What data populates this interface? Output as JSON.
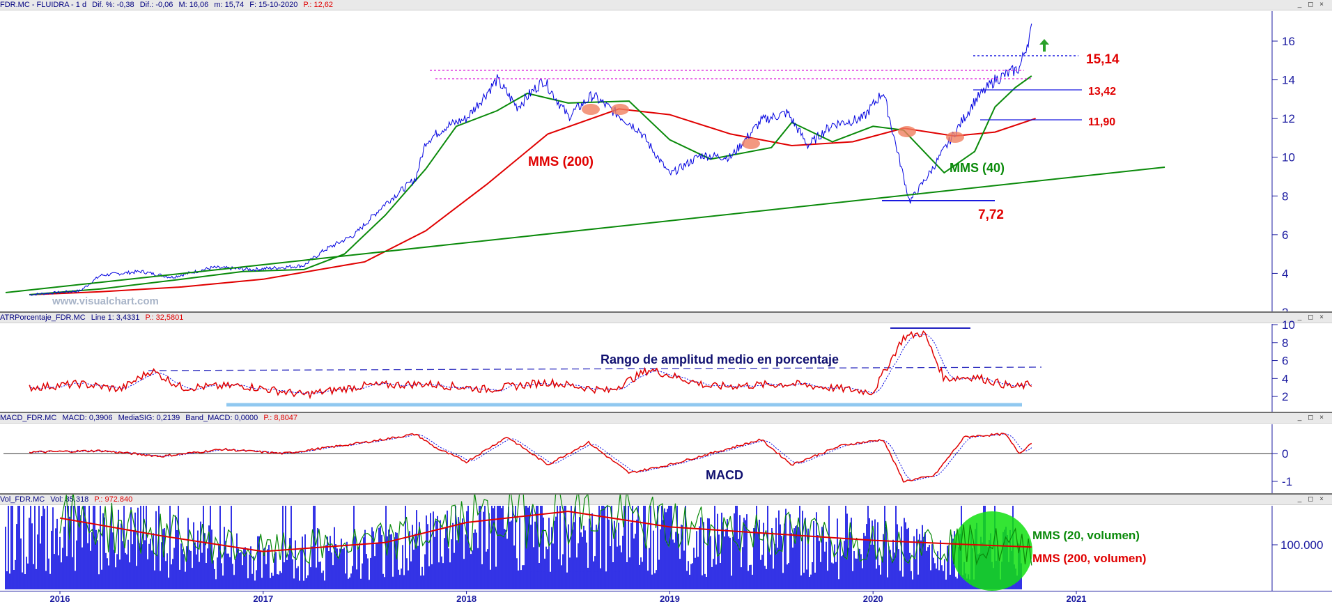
{
  "panels": {
    "price": {
      "header": {
        "symbol": "FDR.MC - FLUIDRA - 1 d",
        "dif_pct": "Dif. %: -0,38",
        "dif": "Dif.: -0,06",
        "max": "M: 16,06",
        "min": "m: 15,74",
        "date": "F: 15-10-2020",
        "price": "P.: 12,62"
      },
      "annotations": {
        "mms200": "MMS (200)",
        "mms40": "MMS (40)",
        "level_1514": "15,14",
        "level_1342": "13,42",
        "level_1190": "11,90",
        "level_772": "7,72"
      },
      "watermark": "www.visualchart.com"
    },
    "atr": {
      "header": {
        "name": "ATRPorcentaje_FDR.MC",
        "line": "Line 1: 3,4331",
        "price": "P.: 32,5801"
      },
      "annotation": "Rango de amplitud medio en porcentaje"
    },
    "macd": {
      "header": {
        "name": "MACD_FDR.MC",
        "macd": "MACD: 0,3906",
        "signal": "MediaSIG: 0,2139",
        "band": "Band_MACD: 0,0000",
        "price": "P.: 8,8047"
      },
      "annotation": "MACD"
    },
    "volume": {
      "header": {
        "name": "Vol_FDR.MC",
        "vol": "Vol: 35.318",
        "price": "P.: 972.840"
      },
      "annotation_mms20": "MMS (20, volumen)",
      "annotation_mms200": "MMS (200, volumen)"
    }
  },
  "window_controls": "_ ◻ ×",
  "colors": {
    "price_line": "#0000e0",
    "mms40": "#0a8a0a",
    "mms200": "#e00000",
    "trendline": "#0a8a0a",
    "atr_line": "#e00000",
    "atr_signal": "#0000e0",
    "macd_line": "#e00000",
    "macd_signal": "#0000e0",
    "volume_bars": "#0000e0",
    "highlight_circle": "#00e000"
  },
  "chart_data": [
    {
      "type": "line",
      "panel": "price",
      "x_ticks": [
        "2016",
        "2017",
        "2018",
        "2019",
        "2020",
        "2021"
      ],
      "y_ticks": [
        "2",
        "4",
        "6",
        "8",
        "10",
        "12",
        "14",
        "16"
      ],
      "ylim": [
        2,
        17
      ],
      "series": [
        {
          "name": "MMS (200)",
          "values": [
            [
              2015.85,
              2.9
            ],
            [
              2016.2,
              3.05
            ],
            [
              2016.6,
              3.3
            ],
            [
              2017.0,
              3.7
            ],
            [
              2017.5,
              4.6
            ],
            [
              2017.8,
              6.2
            ],
            [
              2018.1,
              8.6
            ],
            [
              2018.4,
              11.2
            ],
            [
              2018.75,
              12.5
            ],
            [
              2019.0,
              12.2
            ],
            [
              2019.3,
              11.2
            ],
            [
              2019.6,
              10.6
            ],
            [
              2019.9,
              10.8
            ],
            [
              2020.15,
              11.5
            ],
            [
              2020.4,
              11.1
            ],
            [
              2020.6,
              11.3
            ],
            [
              2020.8,
              12.0
            ]
          ]
        },
        {
          "name": "MMS (40)",
          "values": [
            [
              2015.85,
              2.9
            ],
            [
              2016.2,
              3.2
            ],
            [
              2016.6,
              3.7
            ],
            [
              2016.9,
              4.1
            ],
            [
              2017.2,
              4.2
            ],
            [
              2017.4,
              5.0
            ],
            [
              2017.6,
              7.0
            ],
            [
              2017.8,
              9.4
            ],
            [
              2017.95,
              11.6
            ],
            [
              2018.15,
              12.4
            ],
            [
              2018.3,
              13.3
            ],
            [
              2018.5,
              12.8
            ],
            [
              2018.8,
              12.9
            ],
            [
              2019.0,
              10.9
            ],
            [
              2019.2,
              9.9
            ],
            [
              2019.5,
              10.5
            ],
            [
              2019.6,
              11.8
            ],
            [
              2019.8,
              10.8
            ],
            [
              2020.0,
              11.6
            ],
            [
              2020.15,
              11.4
            ],
            [
              2020.35,
              9.2
            ],
            [
              2020.5,
              10.3
            ],
            [
              2020.6,
              12.6
            ],
            [
              2020.7,
              13.6
            ],
            [
              2020.78,
              14.2
            ]
          ]
        },
        {
          "name": "Precio",
          "values": [
            [
              2015.85,
              2.9
            ],
            [
              2016.1,
              3.1
            ],
            [
              2016.2,
              3.9
            ],
            [
              2016.4,
              4.1
            ],
            [
              2016.55,
              3.8
            ],
            [
              2016.75,
              4.3
            ],
            [
              2016.95,
              4.2
            ],
            [
              2017.2,
              4.4
            ],
            [
              2017.3,
              5.2
            ],
            [
              2017.45,
              6.0
            ],
            [
              2017.6,
              7.6
            ],
            [
              2017.75,
              8.9
            ],
            [
              2017.8,
              10.8
            ],
            [
              2017.9,
              11.6
            ],
            [
              2018.0,
              12.0
            ],
            [
              2018.15,
              14.0
            ],
            [
              2018.25,
              12.6
            ],
            [
              2018.38,
              14.0
            ],
            [
              2018.5,
              12.1
            ],
            [
              2018.62,
              13.2
            ],
            [
              2018.72,
              12.4
            ],
            [
              2018.85,
              11.4
            ],
            [
              2019.0,
              9.1
            ],
            [
              2019.15,
              10.1
            ],
            [
              2019.3,
              10.0
            ],
            [
              2019.45,
              11.9
            ],
            [
              2019.58,
              12.3
            ],
            [
              2019.68,
              10.6
            ],
            [
              2019.8,
              11.7
            ],
            [
              2019.95,
              12.0
            ],
            [
              2020.05,
              13.4
            ],
            [
              2020.12,
              10.3
            ],
            [
              2020.18,
              7.7
            ],
            [
              2020.28,
              9.2
            ],
            [
              2020.38,
              10.9
            ],
            [
              2020.5,
              12.9
            ],
            [
              2020.6,
              14.0
            ],
            [
              2020.72,
              14.6
            ],
            [
              2020.78,
              16.6
            ]
          ]
        }
      ]
    },
    {
      "type": "line",
      "panel": "atr",
      "y_ticks": [
        "2",
        "4",
        "6",
        "8",
        "10"
      ],
      "ylim": [
        1,
        10
      ],
      "series": [
        {
          "name": "ATRPorcentaje",
          "values": [
            [
              2015.85,
              3.0
            ],
            [
              2016.1,
              3.4
            ],
            [
              2016.3,
              2.8
            ],
            [
              2016.45,
              4.9
            ],
            [
              2016.6,
              3.0
            ],
            [
              2016.9,
              3.2
            ],
            [
              2017.2,
              2.2
            ],
            [
              2017.5,
              3.2
            ],
            [
              2017.8,
              3.4
            ],
            [
              2018.1,
              2.8
            ],
            [
              2018.4,
              3.6
            ],
            [
              2018.7,
              2.6
            ],
            [
              2018.9,
              5.0
            ],
            [
              2019.2,
              3.1
            ],
            [
              2019.6,
              3.4
            ],
            [
              2020.0,
              2.5
            ],
            [
              2020.15,
              8.6
            ],
            [
              2020.25,
              9.1
            ],
            [
              2020.35,
              4.0
            ],
            [
              2020.5,
              4.2
            ],
            [
              2020.7,
              3.0
            ],
            [
              2020.78,
              3.4
            ]
          ]
        }
      ]
    },
    {
      "type": "line",
      "panel": "macd",
      "y_ticks": [
        "0",
        "-1"
      ],
      "ylim": [
        -1.3,
        1.0
      ],
      "series": [
        {
          "name": "MACD",
          "values": [
            [
              2015.85,
              0.05
            ],
            [
              2016.2,
              0.1
            ],
            [
              2016.5,
              -0.1
            ],
            [
              2016.8,
              0.15
            ],
            [
              2017.1,
              0.0
            ],
            [
              2017.5,
              0.4
            ],
            [
              2017.75,
              0.7
            ],
            [
              2017.85,
              0.2
            ],
            [
              2018.0,
              -0.3
            ],
            [
              2018.2,
              0.6
            ],
            [
              2018.4,
              -0.4
            ],
            [
              2018.6,
              0.4
            ],
            [
              2018.8,
              -0.7
            ],
            [
              2019.0,
              -0.4
            ],
            [
              2019.25,
              0.1
            ],
            [
              2019.45,
              0.5
            ],
            [
              2019.6,
              -0.4
            ],
            [
              2019.85,
              0.3
            ],
            [
              2020.05,
              0.5
            ],
            [
              2020.15,
              -1.0
            ],
            [
              2020.3,
              -0.8
            ],
            [
              2020.45,
              0.6
            ],
            [
              2020.65,
              0.7
            ],
            [
              2020.72,
              0.0
            ],
            [
              2020.78,
              0.39
            ]
          ]
        }
      ]
    },
    {
      "type": "bar",
      "panel": "volume",
      "y_ticks": [
        "100.000"
      ],
      "series": [
        {
          "name": "MMS (200, volumen)",
          "values": [
            [
              2016.0,
              160000
            ],
            [
              2016.5,
              120000
            ],
            [
              2017.0,
              85000
            ],
            [
              2017.6,
              105000
            ],
            [
              2018.0,
              150000
            ],
            [
              2018.5,
              175000
            ],
            [
              2019.0,
              140000
            ],
            [
              2019.5,
              125000
            ],
            [
              2020.0,
              110000
            ],
            [
              2020.5,
              100000
            ],
            [
              2020.78,
              95000
            ]
          ]
        }
      ]
    }
  ]
}
